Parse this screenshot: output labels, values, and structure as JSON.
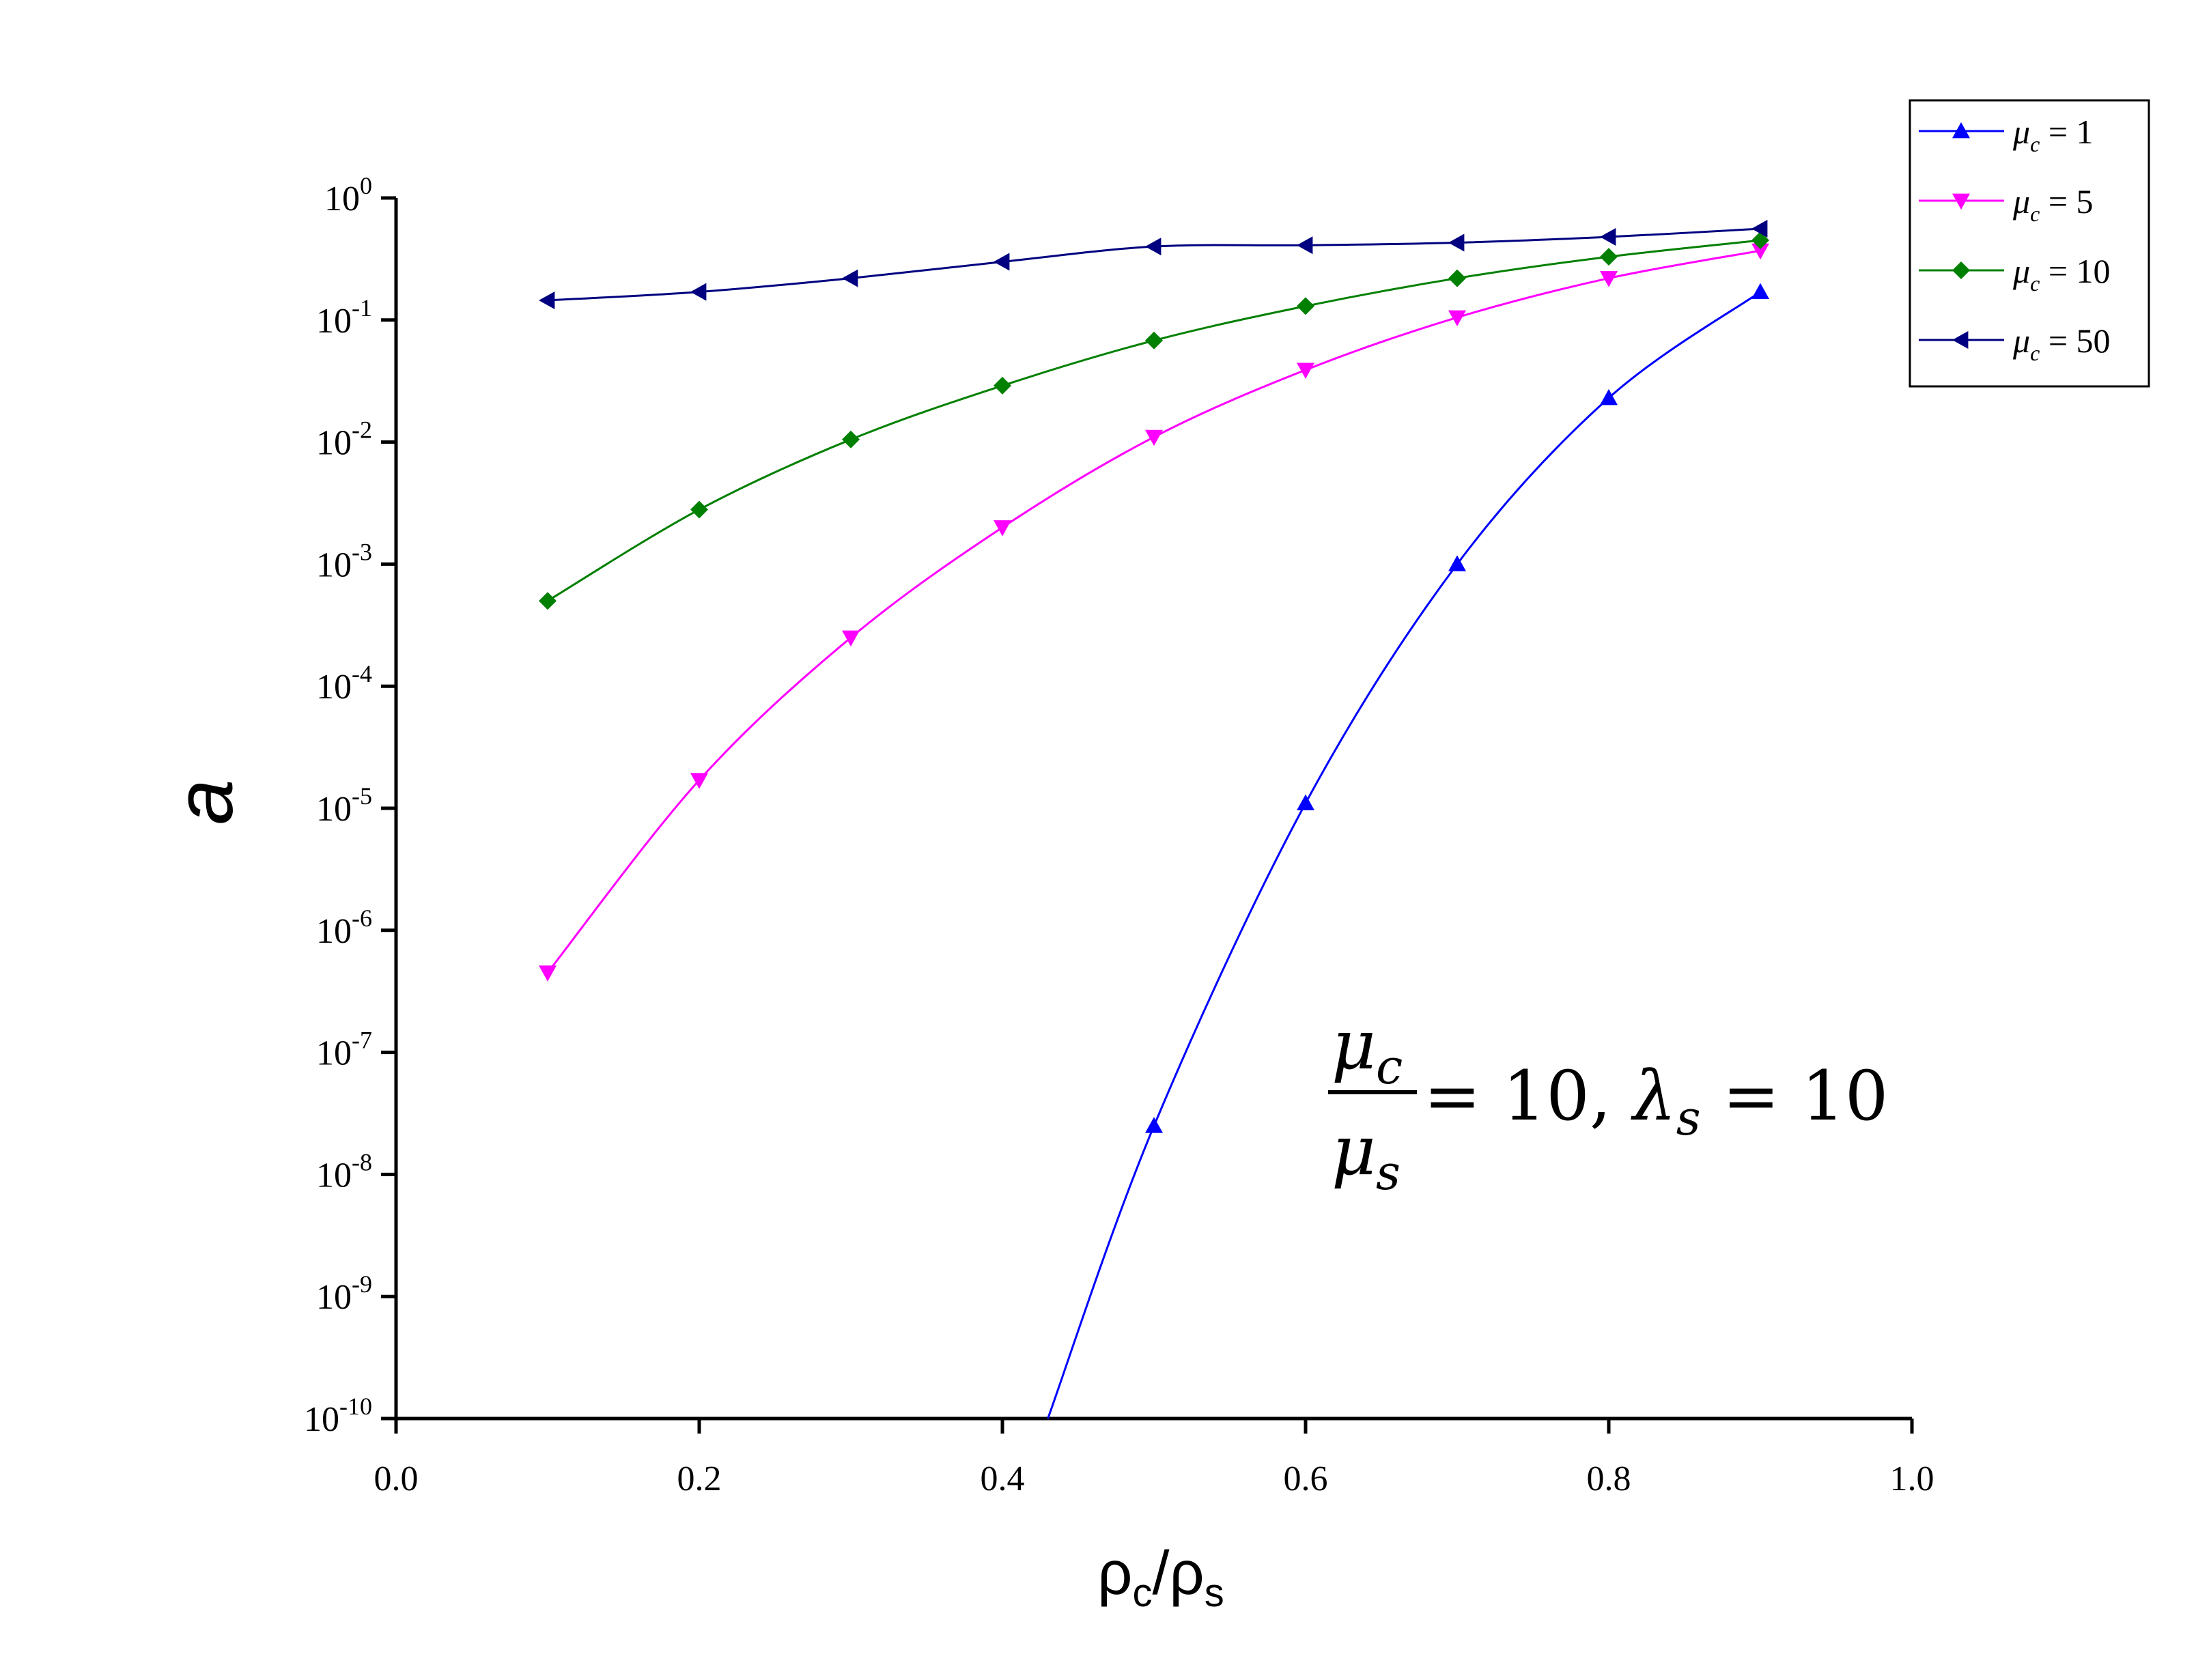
{
  "chart_data": {
    "type": "line",
    "x_axis": {
      "label_main": "ρ",
      "label_sub1": "c",
      "label_sep": "/ρ",
      "label_sub2": "s",
      "range": [
        0.0,
        1.0
      ],
      "ticks": [
        0.0,
        0.2,
        0.4,
        0.6,
        0.8,
        1.0
      ],
      "tick_labels": [
        "0.0",
        "0.2",
        "0.4",
        "0.6",
        "0.8",
        "1.0"
      ]
    },
    "y_axis": {
      "label": "a",
      "scale": "log",
      "range": [
        1e-10,
        1
      ],
      "ticks": [
        {
          "base": "10",
          "exp": "0",
          "value": 1
        },
        {
          "base": "10",
          "exp": "-1",
          "value": 0.1
        },
        {
          "base": "10",
          "exp": "-2",
          "value": 0.01
        },
        {
          "base": "10",
          "exp": "-3",
          "value": 0.001
        },
        {
          "base": "10",
          "exp": "-4",
          "value": 0.0001
        },
        {
          "base": "10",
          "exp": "-5",
          "value": 1e-05
        },
        {
          "base": "10",
          "exp": "-6",
          "value": 1e-06
        },
        {
          "base": "10",
          "exp": "-7",
          "value": 1e-07
        },
        {
          "base": "10",
          "exp": "-8",
          "value": 1e-08
        },
        {
          "base": "10",
          "exp": "-9",
          "value": 1e-09
        },
        {
          "base": "10",
          "exp": "-10",
          "value": 1e-10
        }
      ]
    },
    "legend_position": "top-right",
    "series": [
      {
        "name_sym": "μ",
        "name_sub": "c",
        "name_rest": " = 1",
        "color": "#0000ff",
        "marker": "triangle-up",
        "x": [
          0.5,
          0.6,
          0.7,
          0.8,
          0.9
        ],
        "y": [
          2.5e-08,
          1.1e-05,
          0.001,
          0.023,
          0.17
        ],
        "curve_start": {
          "x": 0.43,
          "y": 1e-10
        }
      },
      {
        "name_sym": "μ",
        "name_sub": "c",
        "name_rest": " = 5",
        "color": "#ff00ff",
        "marker": "triangle-down",
        "x": [
          0.1,
          0.2,
          0.3,
          0.4,
          0.5,
          0.6,
          0.7,
          0.8,
          0.9
        ],
        "y": [
          4.5e-07,
          1.7e-05,
          0.00025,
          0.002,
          0.011,
          0.039,
          0.105,
          0.22,
          0.37
        ]
      },
      {
        "name_sym": "μ",
        "name_sub": "c",
        "name_rest": " = 10",
        "color": "#008000",
        "marker": "diamond",
        "x": [
          0.1,
          0.2,
          0.3,
          0.4,
          0.5,
          0.6,
          0.7,
          0.8,
          0.9
        ],
        "y": [
          0.0005,
          0.0028,
          0.0105,
          0.029,
          0.068,
          0.13,
          0.22,
          0.33,
          0.45
        ]
      },
      {
        "name_sym": "μ",
        "name_sub": "c",
        "name_rest": " = 50",
        "color": "#000080",
        "marker": "triangle-left",
        "x": [
          0.1,
          0.2,
          0.3,
          0.4,
          0.5,
          0.6,
          0.7,
          0.8,
          0.9
        ],
        "y": [
          0.145,
          0.17,
          0.22,
          0.3,
          0.4,
          0.41,
          0.43,
          0.48,
          0.56
        ]
      }
    ],
    "annotation": {
      "num": "μ",
      "num_sub": "c",
      "den": "μ",
      "den_sub": "s",
      "rest1": " = 10, ",
      "lam": "λ",
      "lam_sub": "s",
      "rest2": " = 10"
    }
  }
}
